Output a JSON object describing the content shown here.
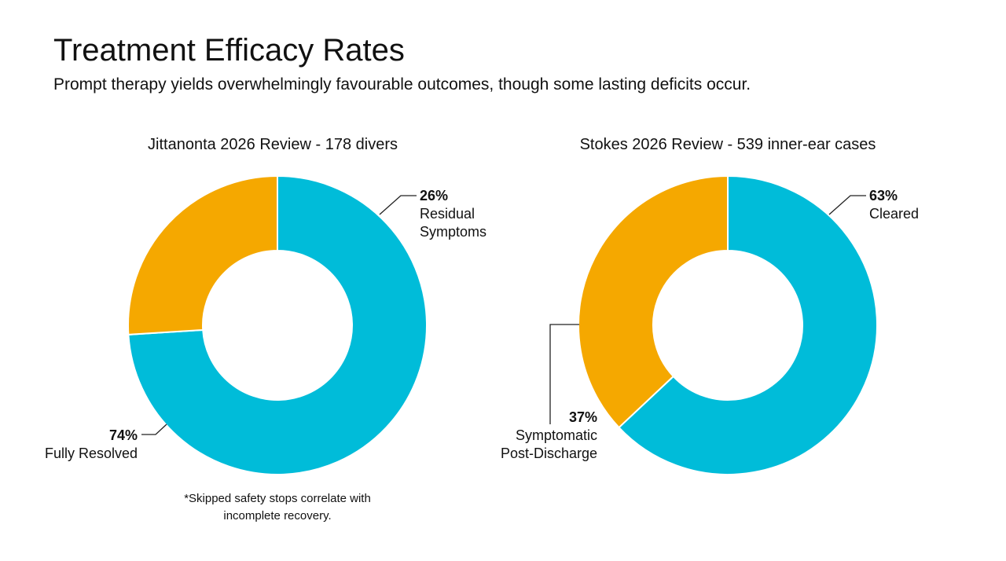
{
  "title": "Treatment Efficacy Rates",
  "subtitle": "Prompt therapy yields overwhelmingly favourable outcomes, though some lasting deficits occur.",
  "chart_data": [
    {
      "type": "donut",
      "title": "Jittanonta 2026 Review - 178 divers",
      "categories": [
        "Fully Resolved",
        "Residual Symptoms"
      ],
      "values": [
        74,
        26
      ],
      "value_labels": [
        "74%",
        "26%"
      ],
      "colors": [
        "#00bcd9",
        "#f5a800"
      ],
      "annotations": [
        "*Skipped safety stops correlate with incomplete recovery."
      ]
    },
    {
      "type": "donut",
      "title": "Stokes 2026 Review - 539 inner-ear cases",
      "categories": [
        "Cleared",
        "Symptomatic Post-Discharge"
      ],
      "values": [
        63,
        37
      ],
      "value_labels": [
        "63%",
        "37%"
      ],
      "colors": [
        "#00bcd9",
        "#f5a800"
      ]
    }
  ]
}
